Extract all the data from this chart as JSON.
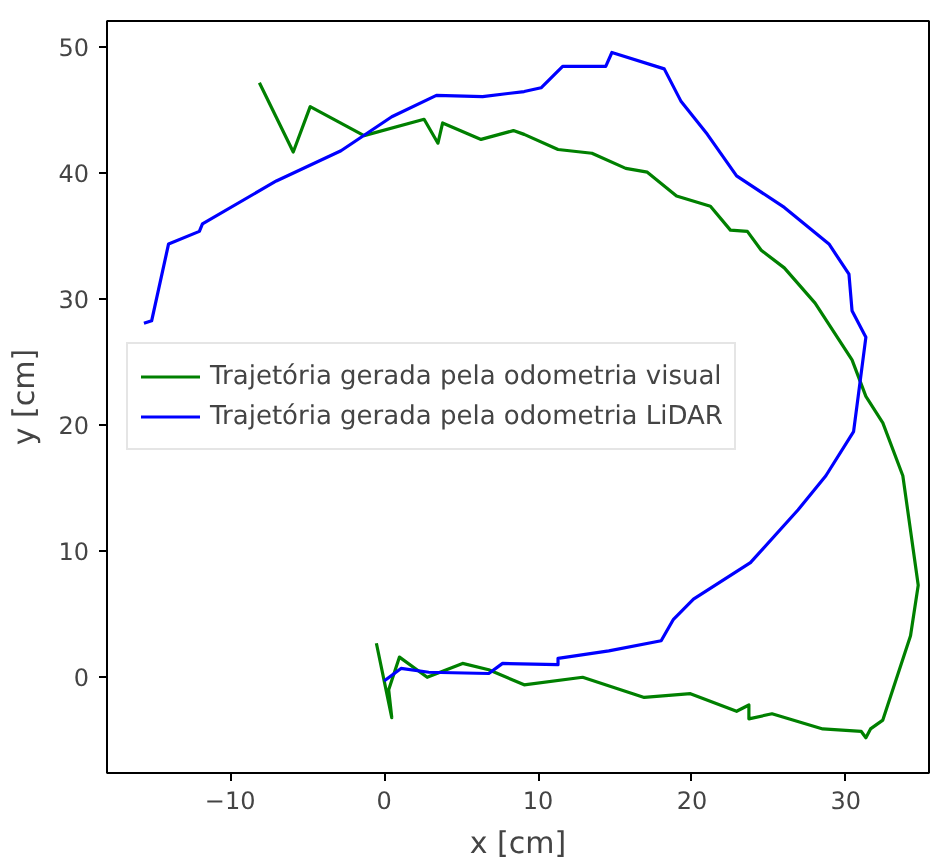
{
  "chart_data": {
    "type": "line",
    "xlabel": "x [cm]",
    "ylabel": "y [cm]",
    "xlim": [
      -18,
      35.4
    ],
    "ylim": [
      -7.6,
      52.1
    ],
    "xticks": [
      -10,
      0,
      10,
      20,
      30
    ],
    "yticks": [
      0,
      10,
      20,
      30,
      40,
      50
    ],
    "grid": false,
    "legend": "left",
    "line_style": "solid",
    "marker": "none",
    "series": [
      {
        "name": "Trajetória gerada pela odometria visual",
        "color": "#008000",
        "x": [
          -0.5,
          0.5,
          0.3,
          1.0,
          2.8,
          5.1,
          6.8,
          9.1,
          12.9,
          16.9,
          19.9,
          22.9,
          23.7,
          23.7,
          25.2,
          28.5,
          31.0,
          31.3,
          31.6,
          32.4,
          34.2,
          34.7,
          33.7,
          32.4,
          31.3,
          30.4,
          28.0,
          26.0,
          24.5,
          23.6,
          22.5,
          21.2,
          19.0,
          17.1,
          15.7,
          13.5,
          11.3,
          9.1,
          8.4,
          6.3,
          3.8,
          3.5,
          2.6,
          -1.3,
          -4.8,
          -5.9,
          -8.1
        ],
        "values": [
          2.7,
          -3.2,
          -1.0,
          1.6,
          0.0,
          1.1,
          0.6,
          -0.6,
          0.0,
          -1.6,
          -1.3,
          -2.7,
          -2.2,
          -3.3,
          -2.9,
          -4.1,
          -4.3,
          -4.8,
          -4.1,
          -3.4,
          3.3,
          7.3,
          16.0,
          20.2,
          22.3,
          25.2,
          29.7,
          32.5,
          33.9,
          35.4,
          35.5,
          37.4,
          38.2,
          40.1,
          40.4,
          41.6,
          41.9,
          43.1,
          43.4,
          42.7,
          44.0,
          42.4,
          44.3,
          43.0,
          45.3,
          41.7,
          47.2
        ]
      },
      {
        "name": "Trajetória gerada pela odometria LiDAR",
        "color": "#0000ff",
        "x": [
          0.0,
          1.1,
          2.9,
          6.8,
          7.7,
          11.3,
          11.3,
          14.6,
          18.0,
          18.8,
          20.1,
          23.8,
          26.9,
          28.7,
          30.5,
          30.8,
          31.3,
          30.4,
          30.2,
          28.9,
          26.0,
          22.9,
          21.0,
          19.3,
          18.2,
          14.8,
          14.4,
          11.6,
          10.2,
          9.1,
          6.4,
          3.4,
          0.5,
          -2.8,
          -7.0,
          -11.8,
          -12.0,
          -14.0,
          -15.1,
          -15.6
        ],
        "values": [
          -0.3,
          0.7,
          0.4,
          0.3,
          1.1,
          1.0,
          1.5,
          2.1,
          2.9,
          4.6,
          6.2,
          9.1,
          13.3,
          16.0,
          19.5,
          22.3,
          27.0,
          29.1,
          32.0,
          34.4,
          37.3,
          39.8,
          43.1,
          45.7,
          48.3,
          49.6,
          48.5,
          48.5,
          46.8,
          46.5,
          46.1,
          46.2,
          44.5,
          41.8,
          39.4,
          36.0,
          35.4,
          34.4,
          28.3,
          28.1
        ]
      }
    ]
  }
}
